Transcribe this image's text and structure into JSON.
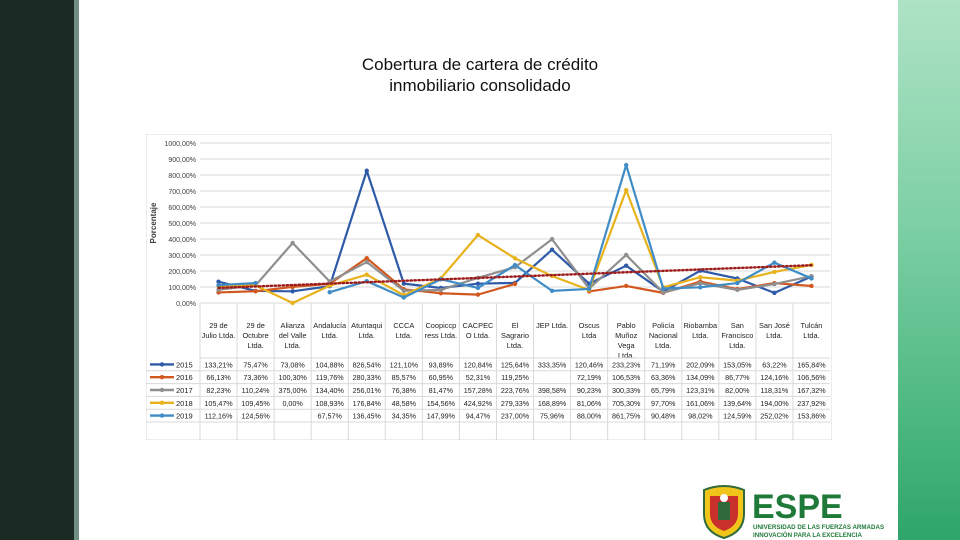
{
  "title_lines": [
    "Cobertura de cartera de crédito",
    "inmobiliario consolidado"
  ],
  "logo": {
    "name": "ESPE",
    "line1": "UNIVERSIDAD DE LAS FUERZAS ARMADAS",
    "line2": "INNOVACIÓN PARA LA EXCELENCIA"
  },
  "colors": {
    "left_bar": "#1c2a26",
    "right_bar": "#4fb983"
  },
  "chart_data": {
    "type": "line",
    "ylabel": "Porcentaje",
    "ylim": [
      0,
      1000
    ],
    "yticks": [
      "0,00%",
      "100,00%",
      "200,00%",
      "300,00%",
      "400,00%",
      "500,00%",
      "600,00%",
      "700,00%",
      "800,00%",
      "900,00%",
      "1000,00%"
    ],
    "categories": [
      [
        "29 de",
        "Julio Ltda."
      ],
      [
        "29 de",
        "Octubre",
        "Ltda."
      ],
      [
        "Alianza",
        "del Valle",
        "Ltda."
      ],
      [
        "Andalucía",
        "Ltda."
      ],
      [
        "Atuntaqui",
        "Ltda."
      ],
      [
        "CCCA",
        "Ltda."
      ],
      [
        "Coopiccp",
        "ress Ltda."
      ],
      [
        "CACPEC",
        "O Ltda."
      ],
      [
        "El",
        "Sagrario",
        "Ltda."
      ],
      [
        "JEP Ltda."
      ],
      [
        "Oscus",
        "Ltda"
      ],
      [
        "Pablo",
        "Muñoz",
        "Vega",
        "Ltda."
      ],
      [
        "Policía",
        "Nacional",
        "Ltda."
      ],
      [
        "Riobamba",
        "Ltda."
      ],
      [
        "San",
        "Francisco",
        "Ltda."
      ],
      [
        "San José",
        "Ltda."
      ],
      [
        "Tulcán",
        "Ltda."
      ]
    ],
    "grid": true,
    "legend": "table-below",
    "trendline": {
      "series": "2019",
      "style": "dotted",
      "color": "#9c1b1b"
    },
    "series": [
      {
        "name": "2015",
        "color": "#2e5aa8",
        "labels": [
          "133,21%",
          "75,47%",
          "73,08%",
          "104,88%",
          "826,54%",
          "121,10%",
          "93,89%",
          "120,84%",
          "125,64%",
          "333,35%",
          "120,46%",
          "233,23%",
          "71,19%",
          "202,09%",
          "153,05%",
          "63,22%",
          "165,84%"
        ],
        "values": [
          133.21,
          75.47,
          73.08,
          104.88,
          826.54,
          121.1,
          93.89,
          120.84,
          125.64,
          333.35,
          120.46,
          233.23,
          71.19,
          202.09,
          153.05,
          63.22,
          165.84
        ]
      },
      {
        "name": "2016",
        "color": "#d1581f",
        "labels": [
          "66,13%",
          "73,36%",
          "100,30%",
          "119,76%",
          "280,33%",
          "85,57%",
          "60,95%",
          "52,31%",
          "119,25%",
          "",
          "72,19%",
          "106,53%",
          "63,36%",
          "134,09%",
          "86,77%",
          "124,16%",
          "106,56%"
        ],
        "values": [
          66.13,
          73.36,
          100.3,
          119.76,
          280.33,
          85.57,
          60.95,
          52.31,
          119.25,
          null,
          72.19,
          106.53,
          63.36,
          134.09,
          86.77,
          124.16,
          106.56
        ]
      },
      {
        "name": "2017",
        "color": "#8f8f8f",
        "labels": [
          "82,23%",
          "110,24%",
          "375,00%",
          "134,40%",
          "256,01%",
          "76,38%",
          "81,47%",
          "157,28%",
          "223,76%",
          "398,58%",
          "90,23%",
          "300,33%",
          "65,79%",
          "123,31%",
          "82,00%",
          "118,31%",
          "167,32%"
        ],
        "values": [
          82.23,
          110.24,
          375.0,
          134.4,
          256.01,
          76.38,
          81.47,
          157.28,
          223.76,
          398.58,
          90.23,
          300.33,
          65.79,
          123.31,
          82.0,
          118.31,
          167.32
        ]
      },
      {
        "name": "2018",
        "color": "#e8b21c",
        "labels": [
          "105,47%",
          "109,45%",
          "0,00%",
          "108,93%",
          "176,84%",
          "48,58%",
          "154,56%",
          "424,92%",
          "279,33%",
          "168,89%",
          "81,06%",
          "705,30%",
          "97,70%",
          "161,06%",
          "139,64%",
          "194,00%",
          "237,92%"
        ],
        "values": [
          105.47,
          109.45,
          0.0,
          108.93,
          176.84,
          48.58,
          154.56,
          424.92,
          279.33,
          168.89,
          81.06,
          705.3,
          97.7,
          161.06,
          139.64,
          194.0,
          237.92
        ]
      },
      {
        "name": "2019",
        "color": "#3f8cc6",
        "labels": [
          "112,16%",
          "124,56%",
          "",
          "67,57%",
          "136,45%",
          "34,35%",
          "147,99%",
          "94,47%",
          "237,00%",
          "75,96%",
          "88,00%",
          "861,75%",
          "90,48%",
          "98,02%",
          "124,59%",
          "252,02%",
          "153,86%"
        ],
        "values": [
          112.16,
          124.56,
          null,
          67.57,
          136.45,
          34.35,
          147.99,
          94.47,
          237.0,
          75.96,
          88.0,
          861.75,
          90.48,
          98.02,
          124.59,
          252.02,
          153.86
        ]
      }
    ]
  }
}
